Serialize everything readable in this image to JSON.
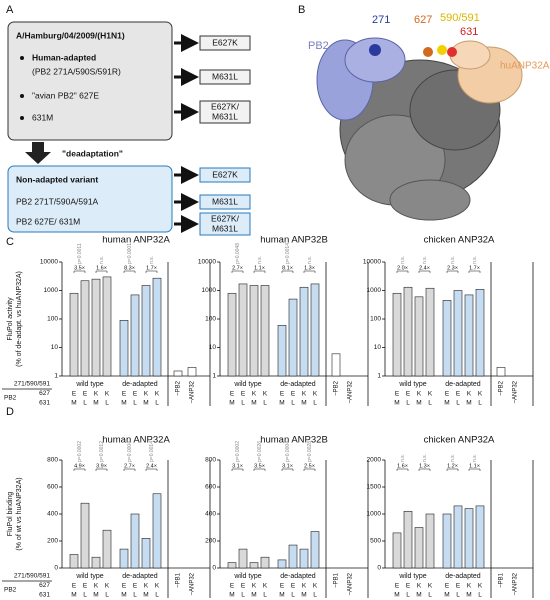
{
  "panel_a": {
    "letter": "A",
    "strain": "A/Hamburg/04/2009/(H1N1)",
    "adapted": "Human-adapted",
    "adapted_detail": "(PB2 271A/590S/591R)",
    "avian": "\"avian PB2\" 627E",
    "m631": "631M",
    "mutants_top": [
      "E627K",
      "M631L",
      "E627K/",
      "M631L"
    ],
    "deadaptation": "\"deadaptation\"",
    "variant": "Non-adapted variant",
    "variant_detail_1": "PB2 271T/590A/591A",
    "variant_detail_2": "PB2 627E/ 631M",
    "mutants_bottom": [
      "E627K",
      "M631L",
      "E627K/",
      "M631L"
    ]
  },
  "panel_b": {
    "letter": "B",
    "labels": [
      "271",
      "627",
      "590/591",
      "631",
      "PB2",
      "huANP32A"
    ]
  },
  "panel_letters": [
    "C",
    "D"
  ],
  "genotype": {
    "labels": [
      "271/590/591",
      "627",
      "631",
      "PB2"
    ],
    "627": [
      "E",
      "E",
      "K",
      "K"
    ],
    "631": [
      "M",
      "L",
      "M",
      "L"
    ]
  },
  "chart_data": [
    {
      "type": "bar",
      "title": "human ANP32A",
      "ylabel": [
        "FluPol activity",
        "(% of de-adapt. vs huANP32A)"
      ],
      "log": true,
      "ylim": [
        1,
        10000
      ],
      "yticks": [
        1,
        10,
        100,
        1000,
        10000
      ],
      "series": [
        {
          "name": "wild type",
          "color": "#d9d9d9",
          "values": [
            800,
            2200,
            2500,
            3000
          ]
        },
        {
          "name": "de-adapted",
          "color": "#c6dcf0",
          "values": [
            90,
            700,
            1500,
            2700
          ]
        },
        {
          "name": "−PB2",
          "color": "#ffffff",
          "values": [
            1.5
          ]
        },
        {
          "name": "−ANP32",
          "color": "#ffffff",
          "values": [
            2
          ]
        }
      ],
      "annotations": [
        {
          "p": "p=0.0011",
          "fold": "3.5×"
        },
        {
          "p": "n.s.",
          "fold": "1.6×"
        },
        {
          "p": "p=0.0001",
          "fold": "8.3×"
        },
        {
          "p": "n.s.",
          "fold": "1.7×"
        }
      ]
    },
    {
      "type": "bar",
      "title": "human ANP32B",
      "log": true,
      "ylim": [
        1,
        10000
      ],
      "yticks": [
        1,
        10,
        100,
        1000,
        10000
      ],
      "series": [
        {
          "name": "wild type",
          "color": "#d9d9d9",
          "values": [
            800,
            1700,
            1500,
            1500
          ]
        },
        {
          "name": "de-adapted",
          "color": "#c6dcf0",
          "values": [
            60,
            500,
            1300,
            1700
          ]
        },
        {
          "name": "−PB2",
          "color": "#ffffff",
          "values": [
            6
          ]
        },
        {
          "name": "−ANP32",
          "color": "#ffffff",
          "values": [
            1
          ]
        }
      ],
      "annotations": [
        {
          "p": "p=0.0048",
          "fold": "2.7×"
        },
        {
          "p": "n.s.",
          "fold": "1.1×"
        },
        {
          "p": "p=0.0014",
          "fold": "8.1×"
        },
        {
          "p": "n.s.",
          "fold": "1.3×"
        }
      ]
    },
    {
      "type": "bar",
      "title": "chicken ANP32A",
      "log": true,
      "ylim": [
        1,
        10000
      ],
      "yticks": [
        1,
        10,
        100,
        1000,
        10000
      ],
      "series": [
        {
          "name": "wild type",
          "color": "#d9d9d9",
          "values": [
            800,
            1300,
            600,
            1200
          ]
        },
        {
          "name": "de-adapted",
          "color": "#c6dcf0",
          "values": [
            450,
            1000,
            700,
            1100
          ]
        },
        {
          "name": "−PB2",
          "color": "#ffffff",
          "values": [
            2
          ]
        },
        {
          "name": "−ANP32",
          "color": "#ffffff",
          "values": [
            1
          ]
        }
      ],
      "annotations": [
        {
          "p": "n.s.",
          "fold": "2.0×"
        },
        {
          "p": "n.s.",
          "fold": "2.4×"
        },
        {
          "p": "n.s.",
          "fold": "2.3×"
        },
        {
          "p": "n.s.",
          "fold": "1.7×"
        }
      ]
    },
    {
      "type": "bar",
      "title": "human ANP32A",
      "ylabel": [
        "FluPol binding",
        "(% of wt vs huANP32A)"
      ],
      "ylim": [
        0,
        800
      ],
      "yticks": [
        0,
        200,
        400,
        600,
        800
      ],
      "series": [
        {
          "name": "wild type",
          "color": "#d9d9d9",
          "values": [
            100,
            480,
            80,
            280
          ]
        },
        {
          "name": "de-adapted",
          "color": "#c6dcf0",
          "values": [
            140,
            400,
            220,
            550
          ]
        },
        {
          "name": "−PB1",
          "color": "#ffffff",
          "values": [
            0
          ]
        },
        {
          "name": "−ANP32",
          "color": "#ffffff",
          "values": [
            0
          ]
        }
      ],
      "annotations": [
        {
          "p": "p=0.0002",
          "fold": "4.9×"
        },
        {
          "p": "p=0.0012",
          "fold": "3.9×"
        },
        {
          "p": "p=0.0004",
          "fold": "2.7×"
        },
        {
          "p": "p=0.0014",
          "fold": "2.4×"
        }
      ]
    },
    {
      "type": "bar",
      "title": "human ANP32B",
      "ylim": [
        0,
        800
      ],
      "yticks": [
        0,
        200,
        400,
        600,
        800
      ],
      "series": [
        {
          "name": "wild type",
          "color": "#d9d9d9",
          "values": [
            40,
            140,
            40,
            80
          ]
        },
        {
          "name": "de-adapted",
          "color": "#c6dcf0",
          "values": [
            60,
            170,
            140,
            270
          ]
        },
        {
          "name": "−PB1",
          "color": "#ffffff",
          "values": [
            0
          ]
        },
        {
          "name": "−ANP32",
          "color": "#ffffff",
          "values": [
            0
          ]
        }
      ],
      "annotations": [
        {
          "p": "p=0.0002",
          "fold": "3.1×"
        },
        {
          "p": "p=0.0026",
          "fold": "3.5×"
        },
        {
          "p": "p=0.0004",
          "fold": "3.1×"
        },
        {
          "p": "p=0.0028",
          "fold": "2.5×"
        }
      ]
    },
    {
      "type": "bar",
      "title": "chicken ANP32A",
      "ylim": [
        0,
        2000
      ],
      "yticks": [
        0,
        500,
        1000,
        1500,
        2000
      ],
      "series": [
        {
          "name": "wild type",
          "color": "#d9d9d9",
          "values": [
            650,
            1050,
            750,
            1000
          ]
        },
        {
          "name": "de-adapted",
          "color": "#c6dcf0",
          "values": [
            1000,
            1150,
            1100,
            1150
          ]
        },
        {
          "name": "−PB1",
          "color": "#ffffff",
          "values": [
            0
          ]
        },
        {
          "name": "−ANP32",
          "color": "#ffffff",
          "values": [
            0
          ]
        }
      ],
      "annotations": [
        {
          "p": "n.s.",
          "fold": "1.6×"
        },
        {
          "p": "n.s.",
          "fold": "1.3×"
        },
        {
          "p": "n.s.",
          "fold": "1.2×"
        },
        {
          "p": "n.s.",
          "fold": "1.1×"
        }
      ]
    }
  ]
}
